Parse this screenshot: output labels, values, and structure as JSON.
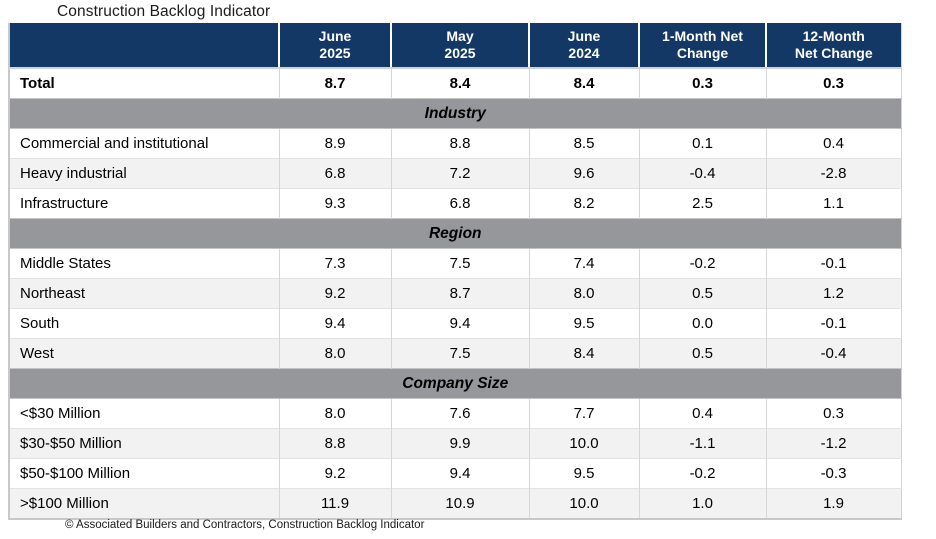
{
  "title": "Construction Backlog Indicator",
  "footer": "© Associated Builders and Contractors, Construction Backlog Indicator",
  "colors": {
    "header_bg": "#133866",
    "header_text": "#FFFFFF",
    "section_band_bg": "#95979A",
    "stripe_row_bg": "#F2F2F2",
    "row_bg": "#FFFFFF",
    "text": "#000000"
  },
  "chart_data": {
    "type": "table",
    "title": "Construction Backlog Indicator",
    "column_headers": [
      "June\n2025",
      "May\n2025",
      "June\n2024",
      "1-Month Net\nChange",
      "12-Month\nNet Change"
    ],
    "total": {
      "label": "Total",
      "values": [
        "8.7",
        "8.4",
        "8.4",
        "0.3",
        "0.3"
      ]
    },
    "sections": [
      {
        "name": "Industry",
        "rows": [
          {
            "label": "Commercial and institutional",
            "values": [
              "8.9",
              "8.8",
              "8.5",
              "0.1",
              "0.4"
            ]
          },
          {
            "label": "Heavy industrial",
            "values": [
              "6.8",
              "7.2",
              "9.6",
              "-0.4",
              "-2.8"
            ]
          },
          {
            "label": "Infrastructure",
            "values": [
              "9.3",
              "6.8",
              "8.2",
              "2.5",
              "1.1"
            ]
          }
        ]
      },
      {
        "name": "Region",
        "rows": [
          {
            "label": "Middle States",
            "values": [
              "7.3",
              "7.5",
              "7.4",
              "-0.2",
              "-0.1"
            ]
          },
          {
            "label": "Northeast",
            "values": [
              "9.2",
              "8.7",
              "8.0",
              "0.5",
              "1.2"
            ]
          },
          {
            "label": "South",
            "values": [
              "9.4",
              "9.4",
              "9.5",
              "0.0",
              "-0.1"
            ]
          },
          {
            "label": "West",
            "values": [
              "8.0",
              "7.5",
              "8.4",
              "0.5",
              "-0.4"
            ]
          }
        ]
      },
      {
        "name": "Company Size",
        "rows": [
          {
            "label": "<$30 Million",
            "values": [
              "8.0",
              "7.6",
              "7.7",
              "0.4",
              "0.3"
            ]
          },
          {
            "label": "$30-$50 Million",
            "values": [
              "8.8",
              "9.9",
              "10.0",
              "-1.1",
              "-1.2"
            ]
          },
          {
            "label": "$50-$100 Million",
            "values": [
              "9.2",
              "9.4",
              "9.5",
              "-0.2",
              "-0.3"
            ]
          },
          {
            "label": ">$100 Million",
            "values": [
              "11.9",
              "10.9",
              "10.0",
              "1.0",
              "1.9"
            ]
          }
        ]
      }
    ]
  }
}
